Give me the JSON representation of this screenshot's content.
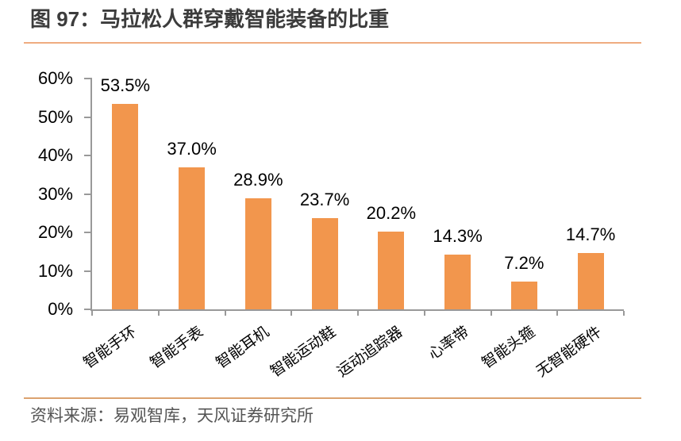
{
  "figure": {
    "title": "图 97：马拉松人群穿戴智能装备的比重",
    "source": "资料来源：易观智库，天风证券研究所"
  },
  "colors": {
    "bar": "#F2964D",
    "title_rule": "#EFAC80",
    "footer_rule": "#DCA26F",
    "axis": "#999999",
    "title_text": "#3C3C3C",
    "footer_text": "#555555",
    "label_text": "#000000"
  },
  "chart_data": {
    "type": "bar",
    "title": "马拉松人群穿戴智能装备的比重",
    "categories": [
      "智能手环",
      "智能手表",
      "智能耳机",
      "智能运动鞋",
      "运动追踪器",
      "心率带",
      "智能头箍",
      "无智能硬件"
    ],
    "values": [
      53.5,
      37.0,
      28.9,
      23.7,
      20.2,
      14.3,
      7.2,
      14.7
    ],
    "data_labels": [
      "53.5%",
      "37.0%",
      "28.9%",
      "23.7%",
      "20.2%",
      "14.3%",
      "7.2%",
      "14.7%"
    ],
    "xlabel": "",
    "ylabel": "",
    "ylim": [
      0,
      60
    ],
    "y_tick_step": 10,
    "y_tick_labels": [
      "0%",
      "10%",
      "20%",
      "30%",
      "40%",
      "50%",
      "60%"
    ],
    "grid": false,
    "legend": "none",
    "bar_orientation": "vertical"
  }
}
